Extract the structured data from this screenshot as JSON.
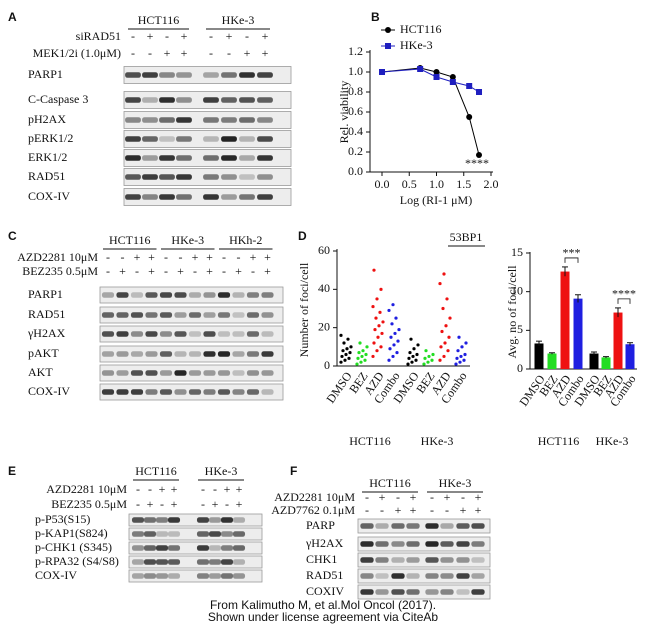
{
  "figure": {
    "A": {
      "label": "A",
      "groups": [
        "HCT116",
        "HKe-3"
      ],
      "treatments": [
        {
          "name": "siRAD51",
          "signs": [
            "-",
            "+",
            "-",
            "+",
            "-",
            "+",
            "-",
            "+"
          ]
        },
        {
          "name": "MEK1/2i (1.0μM)",
          "signs": [
            "-",
            "-",
            "+",
            "+",
            "-",
            "-",
            "+",
            "+"
          ]
        }
      ],
      "rows": [
        "PARP1",
        "C-Caspase 3",
        "pH2AX",
        "pERK1/2",
        "ERK1/2",
        "RAD51",
        "COX-IV"
      ]
    },
    "C": {
      "label": "C",
      "groups": [
        "HCT116",
        "HKe-3",
        "HKh-2"
      ],
      "treatments": [
        {
          "name": "AZD2281 10μM",
          "signs": [
            "-",
            "-",
            "+",
            "+",
            "-",
            "-",
            "+",
            "+",
            "-",
            "-",
            "+",
            "+"
          ]
        },
        {
          "name": "BEZ235 0.5μM",
          "signs": [
            "-",
            "+",
            "-",
            "+",
            "-",
            "+",
            "-",
            "+",
            "-",
            "+",
            "-",
            "+"
          ]
        }
      ],
      "rows": [
        "PARP1",
        "RAD51",
        "γH2AX",
        "pAKT",
        "AKT",
        "COX-IV"
      ]
    },
    "E": {
      "label": "E",
      "groups": [
        "HCT116",
        "HKe-3"
      ],
      "treatments": [
        {
          "name": "AZD2281 10μM",
          "signs": [
            "-",
            "-",
            "+",
            "+",
            "-",
            "-",
            "+",
            "+"
          ]
        },
        {
          "name": "BEZ235 0.5μM",
          "signs": [
            "-",
            "+",
            "-",
            "+",
            "-",
            "+",
            "-",
            "+"
          ]
        }
      ],
      "rows": [
        "p-P53(S15)",
        "p-KAP1(S824)",
        "p-CHK1 (S345)",
        "p-RPA32 (S4/S8)",
        "COX-IV"
      ]
    },
    "F": {
      "label": "F",
      "groups": [
        "HCT116",
        "HKe-3"
      ],
      "treatments": [
        {
          "name": "AZD2281 10μM",
          "signs": [
            "-",
            "+",
            "-",
            "+",
            "-",
            "+",
            "-",
            "+"
          ]
        },
        {
          "name": "AZD7762 0.1μM",
          "signs": [
            "-",
            "-",
            "+",
            "+",
            "-",
            "-",
            "+",
            "+"
          ]
        }
      ],
      "rows": [
        "PARP",
        "γH2AX",
        "CHK1",
        "RAD51",
        "COXIV"
      ]
    }
  },
  "chart_data": [
    {
      "type": "line",
      "panel": "B",
      "x_label": "Log (RI-1 μM)",
      "y_label": "Rel. viability",
      "x": [
        0,
        0.7,
        1.0,
        1.3,
        1.6,
        1.78
      ],
      "series": [
        {
          "name": "HCT116",
          "color": "#000000",
          "marker": "circle",
          "values": [
            1.0,
            1.04,
            1.0,
            0.95,
            0.55,
            0.17
          ]
        },
        {
          "name": "HKe-3",
          "color": "#1f1fbf",
          "marker": "square",
          "values": [
            1.0,
            1.03,
            0.95,
            0.9,
            0.86,
            0.8
          ]
        }
      ],
      "xlim": [
        0,
        2
      ],
      "xticks": [
        {
          "value": 0,
          "label": "0.0"
        },
        0.5,
        {
          "value": 1,
          "label": "1.0"
        },
        1.5,
        {
          "value": 2,
          "label": "2.0"
        }
      ],
      "ylim": [
        0,
        1.2
      ],
      "yticks": [
        {
          "value": 0,
          "label": "0.0"
        },
        0.2,
        0.4,
        0.6,
        0.8,
        {
          "value": 1,
          "label": "1.0"
        },
        1.2
      ],
      "annotation": "****"
    },
    {
      "type": "strip",
      "panel": "D",
      "title": "53BP1",
      "y_label": "Number of foci/cell",
      "categories": [
        "DMSO",
        "BEZ",
        "AZD",
        "Combo",
        "DMSO",
        "BEZ",
        "AZD",
        "Combo"
      ],
      "groups": [
        "HCT116",
        "HKe-3"
      ],
      "colors": [
        "#000000",
        "#22dd22",
        "#ee1111",
        "#1f1fe0",
        "#000000",
        "#22dd22",
        "#ee1111",
        "#1f1fe0"
      ],
      "values": [
        [
          2,
          3,
          4,
          5,
          6,
          7,
          8,
          9,
          10,
          12,
          14,
          16
        ],
        [
          1,
          2,
          3,
          4,
          5,
          6,
          7,
          8,
          10,
          12
        ],
        [
          5,
          8,
          10,
          12,
          15,
          17,
          19,
          21,
          23,
          25,
          28,
          31,
          35,
          40,
          50
        ],
        [
          3,
          5,
          7,
          9,
          11,
          13,
          15,
          17,
          19,
          22,
          25,
          29,
          32
        ],
        [
          1,
          2,
          3,
          4,
          5,
          6,
          7,
          9,
          11,
          14
        ],
        [
          1,
          2,
          3,
          4,
          5,
          6,
          8
        ],
        [
          3,
          5,
          8,
          10,
          12,
          15,
          18,
          21,
          25,
          30,
          35,
          43,
          48
        ],
        [
          1,
          2,
          3,
          4,
          5,
          6,
          8,
          10,
          12,
          15
        ]
      ],
      "ylim": [
        0,
        60
      ],
      "yticks": [
        0,
        20,
        40,
        60
      ]
    },
    {
      "type": "bar",
      "y_label": "Avg. no of foci/cell",
      "categories": [
        "DMSO",
        "BEZ",
        "AZD",
        "Combo",
        "DMSO",
        "BEZ",
        "AZD",
        "Combo"
      ],
      "groups": [
        "HCT116",
        "HKe-3"
      ],
      "colors": [
        "#000000",
        "#22dd22",
        "#ee1111",
        "#1f1fe0",
        "#000000",
        "#22dd22",
        "#ee1111",
        "#1f1fe0"
      ],
      "values": [
        3.3,
        2.0,
        12.6,
        9.1,
        2.0,
        1.5,
        7.3,
        3.2
      ],
      "errors": [
        0.3,
        0.1,
        0.6,
        0.5,
        0.2,
        0.1,
        0.6,
        0.2
      ],
      "annotations": [
        "***",
        "****"
      ],
      "ylim": [
        0,
        15
      ],
      "yticks": [
        0,
        5,
        10,
        15
      ]
    }
  ],
  "footer": [
    "From Kalimutho M, et al.Mol Oncol (2017).",
    "Shown under license agreement via CiteAb"
  ]
}
